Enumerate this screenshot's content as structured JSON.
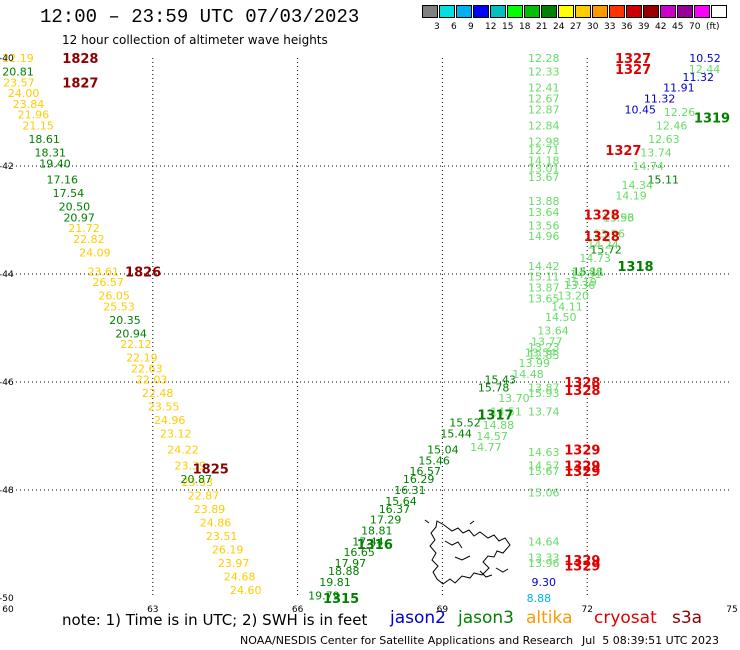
{
  "header": {
    "title": "12:00 – 23:59 UTC 07/03/2023",
    "subtitle": "12 hour collection of altimeter wave heights"
  },
  "scale": {
    "colors": [
      "#808080",
      "#00e0e0",
      "#00b0f0",
      "#0000ff",
      "#00c0c0",
      "#00ff00",
      "#00c000",
      "#008000",
      "#ffff00",
      "#ffcc00",
      "#ff9900",
      "#ff3300",
      "#cc0000",
      "#990000",
      "#cc00cc",
      "#990099",
      "#ff00ff",
      "#ffffff"
    ],
    "labels": [
      "3",
      "6",
      "9",
      "12",
      "15",
      "18",
      "21",
      "24",
      "27",
      "30",
      "33",
      "36",
      "39",
      "42",
      "45",
      "70",
      "(ft)"
    ]
  },
  "footer": {
    "note": "note: 1) Time is in UTC; 2) SWH is in feet",
    "sats": [
      {
        "name": "jason2",
        "color": "#0000cc"
      },
      {
        "name": "jason3",
        "color": "#008000"
      },
      {
        "name": "altika",
        "color": "#ff9900"
      },
      {
        "name": "cryosat",
        "color": "#e00000"
      },
      {
        "name": "s3a",
        "color": "#8b0000"
      }
    ],
    "credit": "NOAA/NESDIS Center for Satellite Applications and Research",
    "timestamp": "Jul  5 08:39:51 UTC 2023"
  },
  "map": {
    "lon_ticks": [
      "60",
      "63",
      "66",
      "69",
      "72",
      "75"
    ],
    "lat_ticks": [
      "-40",
      "-42",
      "-44",
      "-46",
      "-48",
      "-50"
    ],
    "time_labels": [
      {
        "t": "1828",
        "lon": 61.5,
        "lat": -40.0,
        "color": "#8b0000"
      },
      {
        "t": "1827",
        "lon": 61.5,
        "lat": -40.45,
        "color": "#8b0000"
      },
      {
        "t": "1826",
        "lon": 62.8,
        "lat": -43.95,
        "color": "#8b0000"
      },
      {
        "t": "1825",
        "lon": 64.2,
        "lat": -47.6,
        "color": "#8b0000"
      },
      {
        "t": "1315",
        "lon": 66.9,
        "lat": -50.0,
        "color": "#008000"
      },
      {
        "t": "1316",
        "lon": 67.6,
        "lat": -49.0,
        "color": "#008000"
      },
      {
        "t": "1317",
        "lon": 70.1,
        "lat": -46.6,
        "color": "#008000"
      },
      {
        "t": "1318",
        "lon": 73.0,
        "lat": -43.85,
        "color": "#008000"
      },
      {
        "t": "1319",
        "lon": 74.7,
        "lat": -41.1,
        "color": "#008000"
      },
      {
        "t": "1327",
        "lon": 72.95,
        "lat": -40.0,
        "color": "#e00000"
      },
      {
        "t": "1327",
        "lon": 72.95,
        "lat": -40.2,
        "color": "#e00000"
      },
      {
        "t": "1327",
        "lon": 72.75,
        "lat": -41.7,
        "color": "#e00000"
      },
      {
        "t": "1328",
        "lon": 72.3,
        "lat": -42.9,
        "color": "#e00000"
      },
      {
        "t": "1328",
        "lon": 72.3,
        "lat": -43.3,
        "color": "#e00000"
      },
      {
        "t": "1328",
        "lon": 71.9,
        "lat": -46.0,
        "color": "#e00000"
      },
      {
        "t": "1328",
        "lon": 71.9,
        "lat": -46.15,
        "color": "#e00000"
      },
      {
        "t": "1329",
        "lon": 71.9,
        "lat": -47.25,
        "color": "#e00000"
      },
      {
        "t": "1329",
        "lon": 71.9,
        "lat": -47.55,
        "color": "#e00000"
      },
      {
        "t": "1329",
        "lon": 71.9,
        "lat": -47.65,
        "color": "#e00000"
      },
      {
        "t": "1329",
        "lon": 71.9,
        "lat": -49.3,
        "color": "#e00000"
      },
      {
        "t": "1329",
        "lon": 71.9,
        "lat": -49.4,
        "color": "#e00000"
      }
    ],
    "orbits": [
      {
        "color": "#ffcc00",
        "lon0": 60.0,
        "lat0": -40.0,
        "lon1": 64.9,
        "lat1": -49.8,
        "values": [
          "22.19",
          "23.57",
          "24.00",
          "23.84",
          "21.96",
          "21.15",
          "21.72",
          "22.82",
          "24.09",
          "23.61",
          "26.57",
          "26.05",
          "25.53",
          "22.12",
          "22.19",
          "22.63",
          "22.03",
          "22.48",
          "23.55",
          "24.96",
          "23.12",
          "24.22",
          "23.39",
          "23.53",
          "22.87",
          "23.89",
          "24.86",
          "23.51",
          "26.19",
          "23.97",
          "24.68",
          "24.60"
        ],
        "lats": [
          -40.0,
          -40.45,
          -40.65,
          -40.85,
          -41.05,
          -41.25,
          -43.15,
          -43.35,
          -43.6,
          -43.95,
          -44.15,
          -44.4,
          -44.6,
          -45.3,
          -45.55,
          -45.75,
          -45.95,
          -46.2,
          -46.45,
          -46.7,
          -46.95,
          -47.25,
          -47.55,
          -47.85,
          -48.1,
          -48.35,
          -48.6,
          -48.85,
          -49.1,
          -49.35,
          -49.6,
          -49.85
        ]
      },
      {
        "color": "#008000",
        "lon0": 60.0,
        "lat0": -40.0,
        "lon1": 64.9,
        "lat1": -49.8,
        "values": [
          "20.81",
          "18.61",
          "18.31",
          "19.40",
          "17.16",
          "17.54",
          "20.50",
          "20.97",
          "20.35",
          "20.94",
          "20.87"
        ],
        "lats": [
          -40.25,
          -41.5,
          -41.75,
          -41.95,
          -42.25,
          -42.5,
          -42.75,
          -42.95,
          -44.85,
          -45.1,
          -47.8
        ]
      },
      {
        "color": "#008000",
        "lon0": 66.5,
        "lat0": -50.0,
        "lon1": 74.9,
        "lat1": -40.8,
        "values": [
          "19.79",
          "19.81",
          "18.88",
          "17.97",
          "16.65",
          "17.44",
          "18.81",
          "17.29",
          "16.37",
          "15.64",
          "16.31",
          "16.29",
          "16.57",
          "15.46",
          "15.04",
          "15.44",
          "15.52",
          "15.43",
          "15.78",
          "15.11",
          "15.72",
          "15.11"
        ],
        "lats": [
          -49.95,
          -49.7,
          -49.5,
          -49.35,
          -49.15,
          -48.95,
          -48.75,
          -48.55,
          -48.35,
          -48.2,
          -48.0,
          -47.8,
          -47.65,
          -47.45,
          -47.25,
          -46.95,
          -46.75,
          -45.95,
          -46.1,
          -42.25,
          -43.55,
          -43.95
        ]
      },
      {
        "color": "#66dd66",
        "lon0": 69.9,
        "lat0": -47.2,
        "lon1": 74.3,
        "lat1": -40.4,
        "values": [
          "14.77",
          "14.57",
          "14.88",
          "14.51",
          "13.70",
          "14.48",
          "13.99",
          "13.54",
          "13.77",
          "13.64",
          "14.50",
          "14.11",
          "13.20",
          "13.36",
          "13.88",
          "14.31",
          "15.19",
          "14.73",
          "14.24",
          "13.96",
          "13.93",
          "14.19",
          "14.34",
          "13.56",
          "14.74",
          "13.74",
          "12.63",
          "12.46",
          "12.26",
          "12.44"
        ],
        "lats": [
          -47.2,
          -47.0,
          -46.8,
          -46.55,
          -46.3,
          -45.85,
          -45.65,
          -45.45,
          -45.25,
          -45.05,
          -44.8,
          -44.6,
          -44.4,
          -44.2,
          -43.95,
          -44.0,
          -44.15,
          -43.7,
          -43.45,
          -43.25,
          -42.95,
          -42.55,
          -42.35,
          -42.95,
          -42.0,
          -41.75,
          -41.5,
          -41.25,
          -41.0,
          -40.2
        ]
      },
      {
        "color": "#0000cc",
        "lon0": 73.0,
        "lat0": -41.0,
        "lon1": 75.0,
        "lat1": -40.0,
        "values": [
          "10.52",
          "11.32",
          "11.91",
          "11.32",
          "10.45"
        ],
        "lats": [
          -40.0,
          -40.35,
          -40.55,
          -40.75,
          -40.95
        ]
      },
      {
        "color": "#66dd66",
        "lon0": 71.1,
        "lat0": -40.0,
        "lon1": 71.1,
        "lat1": -49.4,
        "values": [
          "12.28",
          "12.33",
          "12.41",
          "12.67",
          "12.87",
          "12.84",
          "12.98",
          "12.71",
          "14.18",
          "13.01",
          "13.67",
          "13.88",
          "13.64",
          "13.56",
          "14.96",
          "14.42",
          "15.11",
          "13.87",
          "13.65",
          "13.23",
          "12.83",
          "13.87",
          "15.93",
          "13.74",
          "14.63",
          "14.57",
          "15.67",
          "15.06",
          "14.64",
          "13.33",
          "13.96"
        ],
        "lats": [
          -40.0,
          -40.25,
          -40.55,
          -40.75,
          -40.95,
          -41.25,
          -41.55,
          -41.7,
          -41.9,
          -42.05,
          -42.2,
          -42.65,
          -42.85,
          -43.1,
          -43.3,
          -43.85,
          -44.05,
          -44.25,
          -44.45,
          -45.35,
          -45.5,
          -46.1,
          -46.2,
          -46.55,
          -47.3,
          -47.55,
          -47.65,
          -48.05,
          -48.95,
          -49.25,
          -49.35
        ]
      },
      {
        "color": "#0000cc",
        "lon0": 71.1,
        "lat0": -49.7,
        "lon1": 71.1,
        "lat1": -49.7,
        "values": [
          "9.30"
        ],
        "lats": [
          -49.7
        ]
      },
      {
        "color": "#00b0f0",
        "lon0": 71.0,
        "lat0": -50.0,
        "lon1": 71.0,
        "lat1": -50.0,
        "values": [
          "8.88"
        ],
        "lats": [
          -50.0
        ]
      }
    ]
  }
}
